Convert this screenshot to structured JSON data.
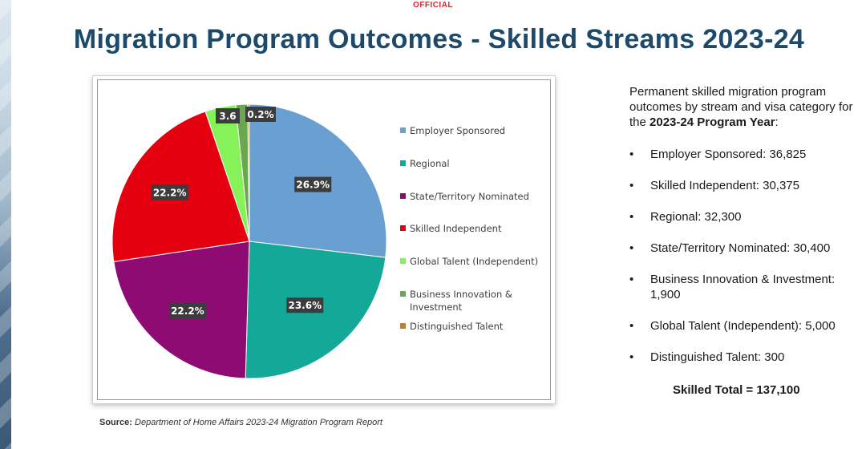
{
  "header": {
    "classification": "OFFICIAL",
    "title": "Migration Program Outcomes - Skilled Streams 2023-24"
  },
  "source": {
    "label": "Source:",
    "text": " Department of Home Affairs 2023-24 Migration Program Report"
  },
  "panel": {
    "intro": "Permanent skilled migration program outcomes by stream and visa category for the ",
    "intro_bold": "2023-24 Program Year",
    "intro_end": ":",
    "items": [
      "Employer Sponsored: 36,825",
      "Skilled Independent: 30,375",
      "Regional: 32,300",
      "State/Territory Nominated: 30,400",
      "Business Innovation & Investment: 1,900",
      "Global Talent (Independent): 5,000",
      "Distinguished Talent: 300"
    ],
    "total": "Skilled Total = 137,100"
  },
  "chart_data": {
    "type": "pie",
    "slices": [
      {
        "name": "Employer Sponsored",
        "value": 26.9,
        "label": "26.9%",
        "color": "#6a9fd2"
      },
      {
        "name": "Regional",
        "value": 23.6,
        "label": "23.6%",
        "color": "#14a898"
      },
      {
        "name": "State/Territory Nominated",
        "value": 22.2,
        "label": "22.2%",
        "color": "#8e0b74"
      },
      {
        "name": "Skilled Independent",
        "value": 22.2,
        "label": "22.2%",
        "color": "#e4000f"
      },
      {
        "name": "Global Talent (Independent)",
        "value": 3.6,
        "label": "3.6",
        "color": "#86f25a"
      },
      {
        "name": "Business Innovation & Investment",
        "value": 1.4,
        "label": "",
        "color": "#6aa84f"
      },
      {
        "name": "Distinguished Talent",
        "value": 0.2,
        "label": "0.2%",
        "color": "#c87e1e"
      }
    ],
    "legend": [
      "Employer Sponsored",
      "Regional",
      "State/Territory Nominated",
      "Skilled Independent",
      "Global Talent (Independent)",
      "Business Innovation & Investment",
      "Distinguished Talent"
    ],
    "legend_placement": "right"
  }
}
